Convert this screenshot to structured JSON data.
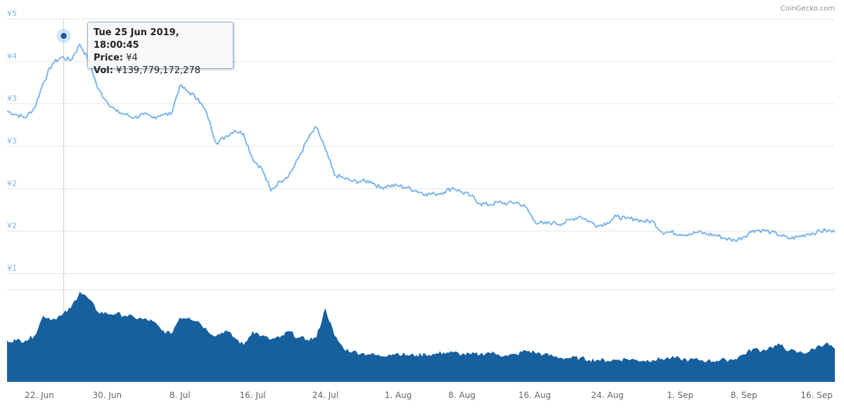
{
  "credit": "CoinGecko.com",
  "tooltip": {
    "date": "Tue 25 Jun 2019, 18:00:45",
    "price_label": "Price:",
    "price_value": "¥4",
    "vol_label": "Vol:",
    "vol_value": "¥139,779,172,278"
  },
  "colors": {
    "price_line": "#7cb5ec",
    "volume_fill": "#17609e",
    "grid": "#e6e6e6",
    "axis_text": "#666666",
    "y_label": "#7cb5ec",
    "marker": "#1a5fa0"
  },
  "chart_data": [
    {
      "type": "line",
      "name": "price",
      "y_tick_labels": [
        "¥5",
        "¥4",
        "¥3",
        "¥3",
        "¥2",
        "¥2",
        "¥1"
      ],
      "x_tick_labels": [
        "22. Jun",
        "30. Jun",
        "8. Jul",
        "16. Jul",
        "24. Jul",
        "1. Aug",
        "8. Aug",
        "16. Aug",
        "24. Aug",
        "1. Sep",
        "8. Sep",
        "16. Sep"
      ],
      "x_range": [
        "2019-06-19",
        "2019-09-18"
      ],
      "ylim": [
        1,
        5
      ],
      "grid": true,
      "highlight": {
        "date": "2019-06-25",
        "value": 4.4
      },
      "points": [
        [
          "2019-06-19",
          3.55
        ],
        [
          "2019-06-20",
          3.5
        ],
        [
          "2019-06-21",
          3.45
        ],
        [
          "2019-06-22",
          3.6
        ],
        [
          "2019-06-23",
          4.0
        ],
        [
          "2019-06-24",
          4.3
        ],
        [
          "2019-06-25",
          4.4
        ],
        [
          "2019-06-26",
          4.35
        ],
        [
          "2019-06-27",
          4.6
        ],
        [
          "2019-06-28",
          4.35
        ],
        [
          "2019-06-29",
          3.9
        ],
        [
          "2019-06-30",
          3.7
        ],
        [
          "2019-07-01",
          3.55
        ],
        [
          "2019-07-02",
          3.5
        ],
        [
          "2019-07-03",
          3.45
        ],
        [
          "2019-07-04",
          3.5
        ],
        [
          "2019-07-05",
          3.45
        ],
        [
          "2019-07-06",
          3.5
        ],
        [
          "2019-07-07",
          3.5
        ],
        [
          "2019-07-08",
          3.95
        ],
        [
          "2019-07-09",
          3.85
        ],
        [
          "2019-07-10",
          3.75
        ],
        [
          "2019-07-11",
          3.5
        ],
        [
          "2019-07-12",
          3.05
        ],
        [
          "2019-07-13",
          3.15
        ],
        [
          "2019-07-14",
          3.25
        ],
        [
          "2019-07-15",
          3.2
        ],
        [
          "2019-07-16",
          2.8
        ],
        [
          "2019-07-17",
          2.65
        ],
        [
          "2019-07-18",
          2.3
        ],
        [
          "2019-07-19",
          2.45
        ],
        [
          "2019-07-20",
          2.55
        ],
        [
          "2019-07-21",
          2.8
        ],
        [
          "2019-07-22",
          3.1
        ],
        [
          "2019-07-23",
          3.3
        ],
        [
          "2019-07-24",
          2.95
        ],
        [
          "2019-07-25",
          2.55
        ],
        [
          "2019-07-26",
          2.5
        ],
        [
          "2019-07-27",
          2.45
        ],
        [
          "2019-07-28",
          2.45
        ],
        [
          "2019-07-29",
          2.45
        ],
        [
          "2019-07-30",
          2.35
        ],
        [
          "2019-07-31",
          2.38
        ],
        [
          "2019-08-01",
          2.38
        ],
        [
          "2019-08-02",
          2.35
        ],
        [
          "2019-08-03",
          2.3
        ],
        [
          "2019-08-04",
          2.25
        ],
        [
          "2019-08-05",
          2.25
        ],
        [
          "2019-08-06",
          2.28
        ],
        [
          "2019-08-07",
          2.35
        ],
        [
          "2019-08-08",
          2.28
        ],
        [
          "2019-08-09",
          2.22
        ],
        [
          "2019-08-10",
          2.1
        ],
        [
          "2019-08-11",
          2.08
        ],
        [
          "2019-08-12",
          2.12
        ],
        [
          "2019-08-13",
          2.1
        ],
        [
          "2019-08-14",
          2.12
        ],
        [
          "2019-08-15",
          2.05
        ],
        [
          "2019-08-16",
          1.82
        ],
        [
          "2019-08-17",
          1.78
        ],
        [
          "2019-08-18",
          1.8
        ],
        [
          "2019-08-19",
          1.78
        ],
        [
          "2019-08-20",
          1.85
        ],
        [
          "2019-08-21",
          1.9
        ],
        [
          "2019-08-22",
          1.82
        ],
        [
          "2019-08-23",
          1.75
        ],
        [
          "2019-08-24",
          1.8
        ],
        [
          "2019-08-25",
          1.9
        ],
        [
          "2019-08-26",
          1.86
        ],
        [
          "2019-08-27",
          1.86
        ],
        [
          "2019-08-28",
          1.82
        ],
        [
          "2019-08-29",
          1.82
        ],
        [
          "2019-08-30",
          1.65
        ],
        [
          "2019-08-31",
          1.65
        ],
        [
          "2019-09-01",
          1.62
        ],
        [
          "2019-09-02",
          1.62
        ],
        [
          "2019-09-03",
          1.65
        ],
        [
          "2019-09-04",
          1.62
        ],
        [
          "2019-09-05",
          1.6
        ],
        [
          "2019-09-06",
          1.55
        ],
        [
          "2019-09-07",
          1.52
        ],
        [
          "2019-09-08",
          1.58
        ],
        [
          "2019-09-09",
          1.68
        ],
        [
          "2019-09-10",
          1.68
        ],
        [
          "2019-09-11",
          1.65
        ],
        [
          "2019-09-12",
          1.6
        ],
        [
          "2019-09-13",
          1.55
        ],
        [
          "2019-09-14",
          1.58
        ],
        [
          "2019-09-15",
          1.62
        ],
        [
          "2019-09-16",
          1.65
        ],
        [
          "2019-09-17",
          1.68
        ],
        [
          "2019-09-18",
          1.65
        ]
      ]
    },
    {
      "type": "area",
      "name": "volume",
      "x_range": [
        "2019-06-19",
        "2019-09-18"
      ],
      "relative_values": [
        0.45,
        0.45,
        0.45,
        0.5,
        0.72,
        0.68,
        0.72,
        0.8,
        0.98,
        0.9,
        0.76,
        0.74,
        0.74,
        0.72,
        0.7,
        0.68,
        0.66,
        0.56,
        0.52,
        0.7,
        0.7,
        0.66,
        0.56,
        0.5,
        0.56,
        0.48,
        0.4,
        0.55,
        0.5,
        0.46,
        0.48,
        0.55,
        0.48,
        0.46,
        0.48,
        0.8,
        0.5,
        0.36,
        0.33,
        0.31,
        0.3,
        0.28,
        0.3,
        0.31,
        0.29,
        0.29,
        0.3,
        0.3,
        0.32,
        0.32,
        0.3,
        0.3,
        0.3,
        0.32,
        0.3,
        0.28,
        0.3,
        0.34,
        0.32,
        0.3,
        0.28,
        0.26,
        0.26,
        0.26,
        0.24,
        0.24,
        0.23,
        0.24,
        0.25,
        0.24,
        0.23,
        0.24,
        0.25,
        0.26,
        0.25,
        0.24,
        0.24,
        0.23,
        0.23,
        0.24,
        0.25,
        0.3,
        0.36,
        0.34,
        0.38,
        0.4,
        0.34,
        0.32,
        0.32,
        0.38,
        0.42,
        0.36
      ]
    }
  ]
}
